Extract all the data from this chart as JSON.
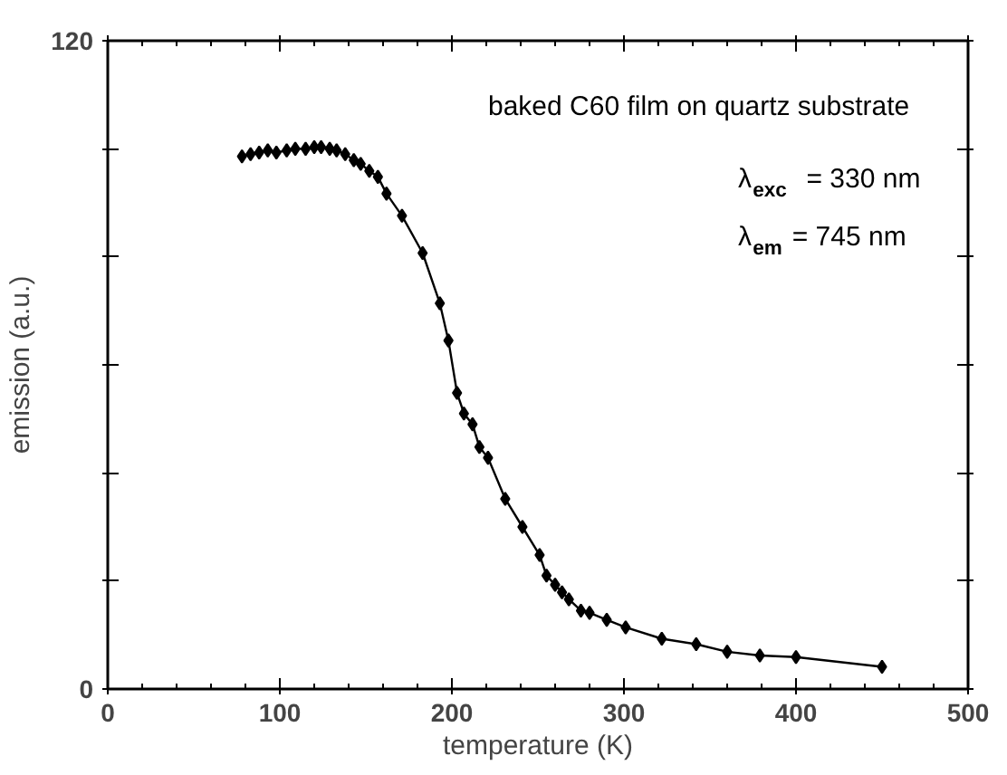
{
  "chart_data": {
    "type": "line",
    "xlabel": "temperature (K)",
    "ylabel": "emission (a.u.)",
    "annotations": [
      "baked C60 film on quartz substrate",
      "λ$_{exc}$ = 330 nm",
      "λ$_{em}$ = 745 nm"
    ],
    "x": [
      78,
      83,
      88,
      93,
      98,
      104,
      109,
      115,
      120,
      124,
      129,
      133,
      138,
      143,
      147,
      152,
      157,
      162,
      171,
      183,
      193,
      198,
      203,
      207,
      212,
      216,
      221,
      231,
      241,
      251,
      255,
      260,
      264,
      268,
      275,
      280,
      290,
      301,
      322,
      342,
      360,
      379,
      400,
      450
    ],
    "series": [
      {
        "color": "#000000",
        "values": [
          98.6,
          99.0,
          99.3,
          99.7,
          99.3,
          99.7,
          100.0,
          100.0,
          100.3,
          100.3,
          100.0,
          99.7,
          99.0,
          97.9,
          97.2,
          95.9,
          94.8,
          91.7,
          87.6,
          80.7,
          71.4,
          64.5,
          54.8,
          51.0,
          49.0,
          44.8,
          42.8,
          35.2,
          30.0,
          24.8,
          21.0,
          19.3,
          17.9,
          16.6,
          14.5,
          14.1,
          12.8,
          11.4,
          9.3,
          8.3,
          6.9,
          6.2,
          5.9,
          4.1
        ]
      }
    ],
    "xlim": [
      0,
      500
    ],
    "xticks": [
      0,
      100,
      200,
      300,
      400,
      500
    ],
    "ylim": [
      0,
      120
    ],
    "yticks": [
      0,
      {
        "value": 20,
        "label": null
      },
      {
        "value": 40,
        "label": null
      },
      {
        "value": 60,
        "label": null
      },
      {
        "value": 80,
        "label": null
      },
      {
        "value": 100,
        "label": null
      },
      120
    ],
    "grid": false,
    "marker": "diamond",
    "line_style": "solid"
  }
}
